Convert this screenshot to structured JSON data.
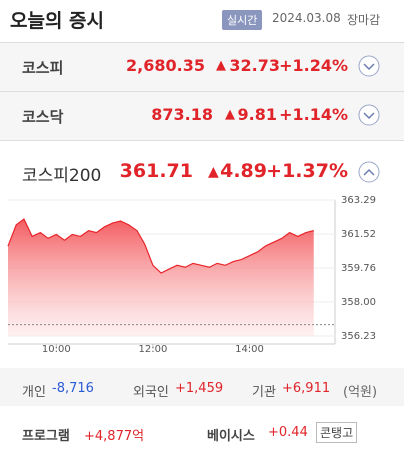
{
  "header": {
    "title": "오늘의 증시",
    "badge": "실시간",
    "date": "2024.03.08",
    "status": "장마감"
  },
  "indices": [
    {
      "name": "코스피",
      "value": "2,680.35",
      "change": "32.73",
      "percent": "+1.24%"
    },
    {
      "name": "코스닥",
      "value": "873.18",
      "change": "9.81",
      "percent": "+1.14%"
    },
    {
      "name": "코스피200",
      "value": "361.71",
      "change": "4.89",
      "percent": "+1.37%"
    }
  ],
  "chart_data": {
    "type": "area",
    "color": "#e8252b",
    "base": 356.82,
    "x": [
      9.0,
      9.17,
      9.33,
      9.5,
      9.67,
      9.83,
      10.0,
      10.17,
      10.33,
      10.5,
      10.67,
      10.83,
      11.0,
      11.17,
      11.33,
      11.5,
      11.67,
      11.83,
      12.0,
      12.17,
      12.33,
      12.5,
      12.67,
      12.83,
      13.0,
      13.17,
      13.33,
      13.5,
      13.67,
      13.83,
      14.0,
      14.17,
      14.33,
      14.5,
      14.67,
      14.83,
      15.0,
      15.17,
      15.33
    ],
    "values": [
      360.9,
      362.0,
      362.3,
      361.4,
      361.6,
      361.3,
      361.5,
      361.2,
      361.5,
      361.4,
      361.7,
      361.6,
      361.9,
      362.1,
      362.2,
      362.0,
      361.7,
      361.0,
      359.9,
      359.5,
      359.7,
      359.9,
      359.8,
      360.0,
      359.9,
      359.8,
      360.0,
      359.9,
      360.1,
      360.2,
      360.4,
      360.6,
      360.9,
      361.1,
      361.3,
      361.6,
      361.4,
      361.6,
      361.7
    ],
    "xlim": [
      9.0,
      15.77
    ],
    "xticks": [
      {
        "value": 10,
        "label": "10:00"
      },
      {
        "value": 12,
        "label": "12:00"
      },
      {
        "value": 14,
        "label": "14:00"
      }
    ],
    "ylim": [
      356.23,
      363.29
    ],
    "yticks": [
      363.29,
      361.52,
      359.76,
      {
        "value": 358,
        "label": "358.00"
      },
      356.23
    ],
    "grid": true
  },
  "investors": {
    "items": [
      {
        "label": "개인",
        "value": "-8,716"
      },
      {
        "label": "외국인",
        "value": "+1,459"
      },
      {
        "label": "기관",
        "value": "+6,911"
      }
    ],
    "unit": "(억원)"
  },
  "footer": {
    "program_label": "프로그램",
    "program_value": "+4,877억",
    "basis_label": "베이시스",
    "basis_value": "+0.44",
    "basis_state": "콘탱고"
  }
}
